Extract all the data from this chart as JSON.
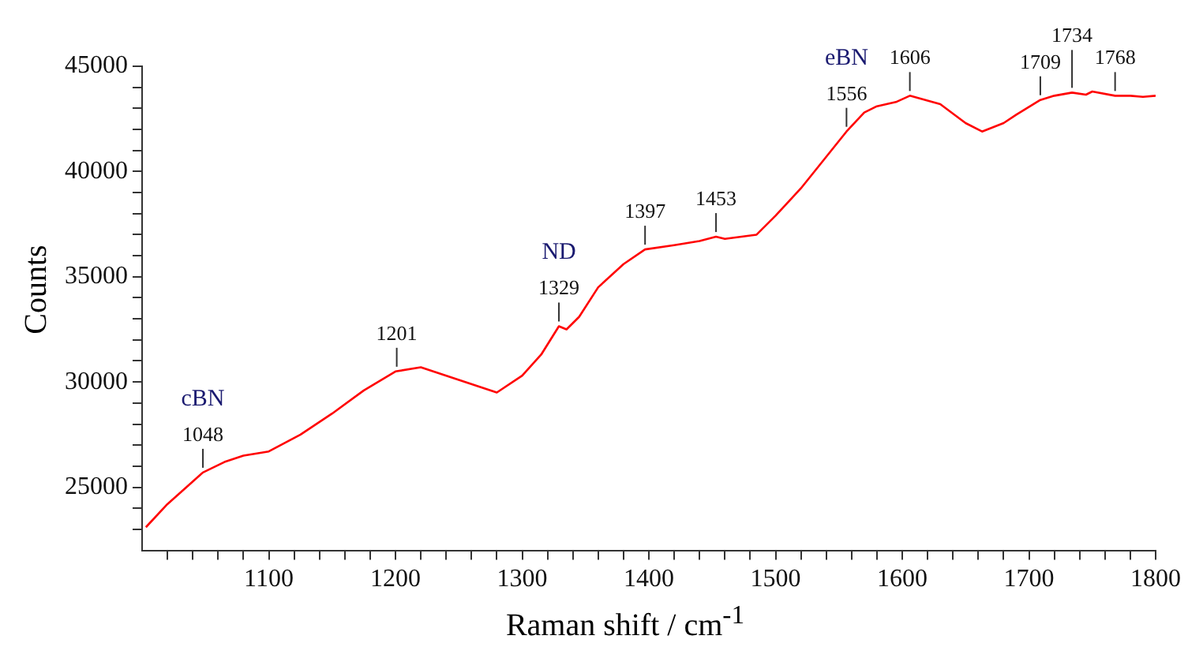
{
  "chart_data": {
    "type": "line",
    "xlabel": "Raman shift / cm$^{-1}$",
    "ylabel": "Counts",
    "x": [
      1003,
      1020,
      1035,
      1048,
      1065,
      1080,
      1100,
      1125,
      1150,
      1175,
      1200,
      1220,
      1250,
      1265,
      1280,
      1300,
      1315,
      1329,
      1335,
      1345,
      1360,
      1380,
      1397,
      1420,
      1440,
      1453,
      1460,
      1485,
      1500,
      1520,
      1540,
      1556,
      1570,
      1580,
      1595,
      1606,
      1630,
      1650,
      1663,
      1680,
      1690,
      1709,
      1720,
      1734,
      1745,
      1750,
      1768,
      1780,
      1790,
      1800
    ],
    "series": [
      {
        "color": "#ff0000",
        "values": [
          23100,
          24200,
          25000,
          25700,
          26200,
          26500,
          26700,
          27500,
          28500,
          29600,
          30500,
          30700,
          30100,
          29800,
          29500,
          30300,
          31300,
          32650,
          32500,
          33100,
          34500,
          35600,
          36300,
          36500,
          36700,
          36900,
          36800,
          37000,
          37900,
          39200,
          40700,
          41900,
          42800,
          43100,
          43300,
          43600,
          43200,
          42300,
          41900,
          42300,
          42700,
          43400,
          43600,
          43750,
          43650,
          43800,
          43600,
          43600,
          43550,
          43600
        ]
      }
    ],
    "xlim": [
      1000,
      1800
    ],
    "xticks": [
      {
        "value": 1020,
        "label": null
      },
      {
        "value": 1040,
        "label": null
      },
      {
        "value": 1060,
        "label": null
      },
      {
        "value": 1080,
        "label": null
      },
      1100,
      {
        "value": 1120,
        "label": null
      },
      {
        "value": 1140,
        "label": null
      },
      {
        "value": 1160,
        "label": null
      },
      {
        "value": 1180,
        "label": null
      },
      1200,
      {
        "value": 1220,
        "label": null
      },
      {
        "value": 1240,
        "label": null
      },
      {
        "value": 1260,
        "label": null
      },
      {
        "value": 1280,
        "label": null
      },
      1300,
      {
        "value": 1320,
        "label": null
      },
      {
        "value": 1340,
        "label": null
      },
      {
        "value": 1360,
        "label": null
      },
      {
        "value": 1380,
        "label": null
      },
      1400,
      {
        "value": 1420,
        "label": null
      },
      {
        "value": 1440,
        "label": null
      },
      {
        "value": 1460,
        "label": null
      },
      {
        "value": 1480,
        "label": null
      },
      1500,
      {
        "value": 1520,
        "label": null
      },
      {
        "value": 1540,
        "label": null
      },
      {
        "value": 1560,
        "label": null
      },
      {
        "value": 1580,
        "label": null
      },
      1600,
      {
        "value": 1620,
        "label": null
      },
      {
        "value": 1640,
        "label": null
      },
      {
        "value": 1660,
        "label": null
      },
      {
        "value": 1680,
        "label": null
      },
      1700,
      {
        "value": 1720,
        "label": null
      },
      {
        "value": 1740,
        "label": null
      },
      {
        "value": 1760,
        "label": null
      },
      {
        "value": 1780,
        "label": null
      },
      1800
    ],
    "ylim": [
      22000,
      45000
    ],
    "yticks": [
      {
        "value": 23000,
        "label": null
      },
      {
        "value": 24000,
        "label": null
      },
      25000,
      {
        "value": 26000,
        "label": null
      },
      {
        "value": 27000,
        "label": null
      },
      {
        "value": 28000,
        "label": null
      },
      {
        "value": 29000,
        "label": null
      },
      30000,
      {
        "value": 31000,
        "label": null
      },
      {
        "value": 32000,
        "label": null
      },
      {
        "value": 33000,
        "label": null
      },
      {
        "value": 34000,
        "label": null
      },
      35000,
      {
        "value": 36000,
        "label": null
      },
      {
        "value": 37000,
        "label": null
      },
      {
        "value": 38000,
        "label": null
      },
      {
        "value": 39000,
        "label": null
      },
      40000,
      {
        "value": 41000,
        "label": null
      },
      {
        "value": 42000,
        "label": null
      },
      {
        "value": 43000,
        "label": null
      },
      {
        "value": 44000,
        "label": null
      },
      45000
    ],
    "grid": false,
    "legend": false,
    "marker": "none",
    "line_style": "solid",
    "annotations": [
      {
        "text": "1048",
        "x": 1048,
        "y": 25700
      },
      {
        "text": "cBN",
        "x": 1048,
        "y": 25700
      },
      {
        "text": "1201",
        "x": 1201,
        "y": 30500
      },
      {
        "text": "1329",
        "x": 1329,
        "y": 32650
      },
      {
        "text": "ND",
        "x": 1329,
        "y": 32650
      },
      {
        "text": "1397",
        "x": 1397,
        "y": 36300
      },
      {
        "text": "1453",
        "x": 1453,
        "y": 36900
      },
      {
        "text": "1556",
        "x": 1556,
        "y": 41900
      },
      {
        "text": "eBN",
        "x": 1556,
        "y": 41900
      },
      {
        "text": "1606",
        "x": 1606,
        "y": 43600
      },
      {
        "text": "1709",
        "x": 1709,
        "y": 43400
      },
      {
        "text": "1734",
        "x": 1734,
        "y": 43750
      },
      {
        "text": "1768",
        "x": 1768,
        "y": 43600
      }
    ]
  }
}
